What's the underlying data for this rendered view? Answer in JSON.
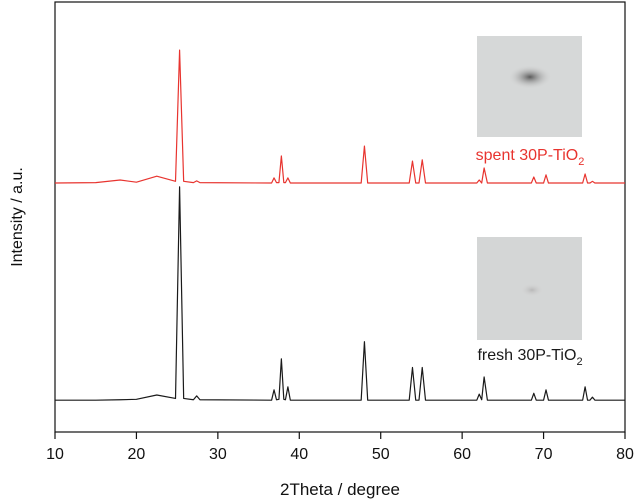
{
  "chart_data": {
    "type": "line",
    "xlabel": "2Theta / degree",
    "ylabel": "Intensity / a.u.",
    "x": [
      10,
      15,
      18,
      20,
      22.5,
      24.8,
      25.3,
      25.8,
      27.0,
      27.4,
      27.8,
      36.6,
      36.9,
      37.2,
      37.5,
      37.8,
      38.1,
      38.3,
      38.6,
      38.9,
      47.6,
      48.0,
      48.4,
      53.5,
      53.9,
      54.3,
      54.7,
      55.1,
      55.5,
      61.8,
      62.1,
      62.4,
      62.7,
      63.1,
      68.5,
      68.8,
      69.1,
      70.0,
      70.3,
      70.6,
      74.8,
      75.1,
      75.4,
      75.7,
      76.0,
      76.3,
      80
    ],
    "series": [
      {
        "name": "spent",
        "color": "#e8342f",
        "values": [
          57.9,
          58.0,
          58.6,
          58.1,
          59.5,
          58.3,
          88.8,
          58.3,
          58.0,
          58.4,
          58.0,
          57.9,
          59.1,
          58.0,
          58.0,
          64.2,
          58.0,
          58.0,
          59.1,
          57.9,
          57.9,
          66.5,
          57.9,
          57.9,
          63.0,
          57.9,
          57.9,
          63.3,
          57.9,
          57.9,
          58.6,
          57.9,
          61.4,
          57.9,
          57.9,
          59.3,
          57.9,
          57.9,
          59.8,
          57.9,
          57.9,
          60.0,
          57.9,
          57.9,
          58.3,
          57.9,
          57.9
        ]
      },
      {
        "name": "fresh",
        "color": "#1a1a1a",
        "values": [
          7.4,
          7.4,
          7.5,
          7.6,
          8.6,
          7.8,
          57,
          7.8,
          7.5,
          8.4,
          7.5,
          7.4,
          9.8,
          7.5,
          7.6,
          17,
          7.6,
          7.5,
          10.5,
          7.4,
          7.4,
          21,
          7.4,
          7.4,
          15,
          7.4,
          7.4,
          15,
          7.4,
          7.4,
          8.8,
          7.5,
          12.8,
          7.4,
          7.4,
          9,
          7.4,
          7.4,
          9.8,
          7.4,
          7.4,
          10.5,
          7.4,
          7.4,
          8.1,
          7.4,
          7.4
        ]
      }
    ],
    "annotations": [
      {
        "text": "spent 30P-TiO",
        "subscript": "2",
        "color": "#e8342f"
      },
      {
        "text": "fresh 30P-TiO",
        "subscript": "2",
        "color": "#1a1a1a"
      }
    ],
    "xlim": [
      10,
      80
    ],
    "ylim": [
      0,
      100
    ],
    "xticks": [
      10,
      20,
      30,
      40,
      50,
      60,
      70,
      80
    ]
  }
}
